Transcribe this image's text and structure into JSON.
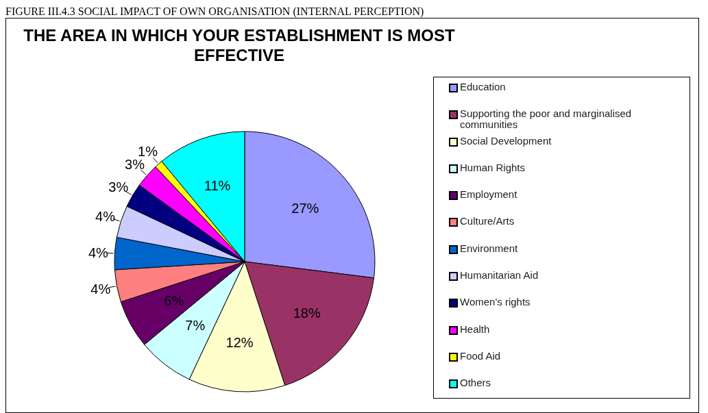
{
  "chart_data": {
    "type": "pie",
    "title": "THE AREA IN WHICH YOUR ESTABLISHMENT IS MOST EFFECTIVE",
    "annotations": [
      "FIGURE III.4.3 SOCIAL IMPACT OF OWN ORGANISATION (INTERNAL PERCEPTION)"
    ],
    "categories": [
      "Education",
      "Supporting the poor and marginalised communities",
      "Social Development",
      "Human Rights",
      "Employment",
      "Culture/Arts",
      "Environment",
      "Humanitarian Aid",
      "Women's rights",
      "Health",
      "Food Aid",
      "Others"
    ],
    "values": [
      27,
      18,
      12,
      7,
      6,
      4,
      4,
      4,
      3,
      3,
      1,
      11
    ],
    "value_labels": [
      "27%",
      "18%",
      "12%",
      "7%",
      "6%",
      "4%",
      "4%",
      "4%",
      "3%",
      "3%",
      "1%",
      "11%"
    ],
    "colors": [
      "#9999ff",
      "#993366",
      "#ffffcc",
      "#ccffff",
      "#660066",
      "#ff8080",
      "#0066cc",
      "#ccccff",
      "#000080",
      "#ff00ff",
      "#ffff00",
      "#00ffff"
    ],
    "legend": "right"
  }
}
